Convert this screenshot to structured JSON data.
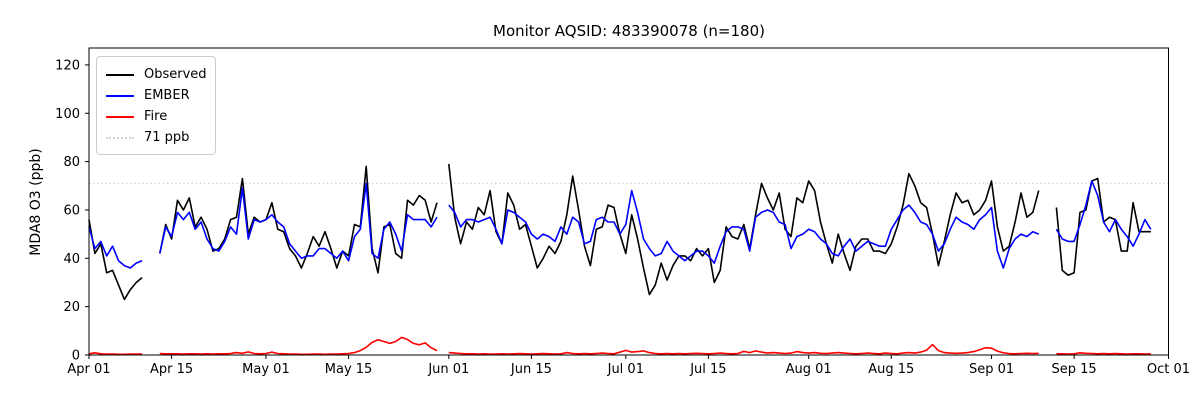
{
  "title": "Monitor AQSID: 483390078 (n=180)",
  "axes": {
    "ylabel": "MDA8 O3 (ppb)",
    "xlabel": "",
    "yticks": [
      0,
      20,
      40,
      60,
      80,
      100,
      120
    ],
    "ylim": [
      0,
      127
    ],
    "xtick_labels": [
      "Apr 01",
      "Apr 15",
      "May 01",
      "May 15",
      "Jun 01",
      "Jun 15",
      "Jul 01",
      "Jul 15",
      "Aug 01",
      "Aug 15",
      "Sep 01",
      "Sep 15",
      "Oct 01"
    ],
    "xtick_days": [
      0,
      14,
      30,
      44,
      61,
      75,
      91,
      105,
      122,
      136,
      153,
      167,
      183
    ],
    "grid": false
  },
  "colors": {
    "observed": "#000000",
    "ember": "#0000ff",
    "fire": "#ff0000",
    "threshold": "#d3d3d3",
    "spine": "#000000",
    "background": "#ffffff"
  },
  "legend": {
    "position": "upper left",
    "items": [
      {
        "label": "Observed",
        "color": "#000000",
        "dotted": false
      },
      {
        "label": "EMBER",
        "color": "#0000ff",
        "dotted": false
      },
      {
        "label": "Fire",
        "color": "#ff0000",
        "dotted": false
      },
      {
        "label": "71 ppb",
        "color": "#d3d3d3",
        "dotted": true
      }
    ]
  },
  "chart_data": {
    "type": "line",
    "title": "Monitor AQSID: 483390078 (n=180)",
    "xlabel": "",
    "ylabel": "MDA8 O3 (ppb)",
    "x_unit": "day index from Apr 01 (daily values, Apr 01 - Oct 01)",
    "n_days": 183,
    "ylim": [
      0,
      127
    ],
    "yticks": [
      0,
      20,
      40,
      60,
      80,
      100,
      120
    ],
    "xtick_days": [
      0,
      14,
      30,
      44,
      61,
      75,
      91,
      105,
      122,
      136,
      153,
      167,
      183
    ],
    "xtick_labels": [
      "Apr 01",
      "Apr 15",
      "May 01",
      "May 15",
      "Jun 01",
      "Jun 15",
      "Jul 01",
      "Jul 15",
      "Aug 01",
      "Aug 15",
      "Sep 01",
      "Sep 15",
      "Oct 01"
    ],
    "threshold_line": {
      "value": 71,
      "label": "71 ppb",
      "color": "#d3d3d3",
      "style": "dotted"
    },
    "legend_position": "upper left",
    "grid": false,
    "note": "null = missing day (data gaps near Apr 11-12, May 31, Sep 10-11, and after Sep 28)",
    "series": [
      {
        "name": "Observed",
        "color": "#000000",
        "values": [
          56,
          42,
          46,
          34,
          35,
          29,
          23,
          27,
          30,
          32,
          null,
          null,
          42,
          54,
          48,
          64,
          60,
          65,
          53,
          57,
          52,
          43,
          44,
          48,
          56,
          57,
          73,
          50,
          57,
          55,
          56,
          63,
          52,
          51,
          44,
          41,
          36,
          42,
          49,
          45,
          51,
          44,
          36,
          43,
          41,
          54,
          53,
          78,
          44,
          34,
          53,
          54,
          42,
          40,
          64,
          62,
          66,
          64,
          55,
          63,
          null,
          79,
          57,
          46,
          55,
          52,
          61,
          58,
          68,
          51,
          46,
          67,
          62,
          52,
          54,
          45,
          36,
          40,
          45,
          42,
          47,
          58,
          74,
          60,
          45,
          37,
          52,
          53,
          62,
          61,
          50,
          42,
          58,
          48,
          36,
          25,
          29,
          38,
          31,
          37,
          41,
          41,
          39,
          44,
          41,
          44,
          30,
          35,
          53,
          49,
          48,
          54,
          44,
          58,
          71,
          65,
          60,
          67,
          52,
          49,
          65,
          63,
          72,
          68,
          55,
          46,
          38,
          50,
          42,
          35,
          45,
          48,
          48,
          43,
          43,
          42,
          46,
          53,
          62,
          75,
          70,
          63,
          61,
          50,
          37,
          47,
          58,
          67,
          63,
          64,
          58,
          60,
          64,
          72,
          53,
          43,
          45,
          55,
          67,
          57,
          59,
          68,
          null,
          null,
          61,
          35,
          33,
          34,
          59,
          60,
          72,
          73,
          55,
          57,
          56,
          43,
          43,
          63,
          51,
          51,
          51,
          null,
          null
        ]
      },
      {
        "name": "EMBER",
        "color": "#0000ff",
        "values": [
          53,
          44,
          47,
          41,
          45,
          39,
          37,
          36,
          38,
          39,
          null,
          null,
          42,
          53,
          49,
          59,
          56,
          59,
          52,
          55,
          48,
          44,
          43,
          47,
          53,
          50,
          69,
          48,
          56,
          55,
          56,
          58,
          55,
          53,
          46,
          43,
          40,
          41,
          41,
          44,
          44,
          42,
          40,
          43,
          39,
          49,
          52,
          71,
          42,
          40,
          52,
          55,
          50,
          43,
          58,
          56,
          56,
          56,
          53,
          57,
          null,
          62,
          59,
          53,
          56,
          56,
          55,
          56,
          57,
          52,
          46,
          60,
          59,
          57,
          55,
          50,
          48,
          50,
          49,
          47,
          53,
          50,
          57,
          55,
          46,
          47,
          56,
          57,
          55,
          55,
          50,
          54,
          68,
          59,
          48,
          44,
          41,
          42,
          47,
          43,
          41,
          39,
          41,
          43,
          43,
          41,
          38,
          45,
          51,
          53,
          53,
          52,
          43,
          57,
          59,
          60,
          59,
          55,
          54,
          44,
          49,
          50,
          52,
          51,
          48,
          46,
          42,
          41,
          45,
          48,
          43,
          45,
          47,
          46,
          45,
          45,
          52,
          56,
          60,
          62,
          59,
          55,
          54,
          50,
          43,
          46,
          52,
          57,
          55,
          54,
          52,
          56,
          58,
          61,
          43,
          36,
          44,
          48,
          50,
          49,
          51,
          50,
          null,
          null,
          52,
          48,
          47,
          47,
          54,
          62,
          72,
          66,
          55,
          51,
          56,
          52,
          49,
          45,
          50,
          56,
          52,
          null,
          null
        ]
      },
      {
        "name": "Fire",
        "color": "#ff0000",
        "values": [
          0.5,
          0.9,
          0.5,
          0.4,
          0.4,
          0.3,
          0.3,
          0.4,
          0.4,
          0.4,
          null,
          null,
          0.6,
          0.5,
          0.5,
          0.5,
          0.4,
          0.5,
          0.5,
          0.4,
          0.5,
          0.4,
          0.5,
          0.5,
          0.6,
          1.0,
          0.7,
          1.3,
          0.6,
          0.5,
          0.6,
          1.2,
          0.6,
          0.5,
          0.4,
          0.4,
          0.3,
          0.3,
          0.4,
          0.4,
          0.3,
          0.4,
          0.4,
          0.5,
          0.6,
          1.0,
          1.8,
          3.2,
          5.2,
          6.3,
          5.6,
          4.8,
          5.6,
          7.3,
          6.4,
          4.8,
          4.2,
          5.0,
          3.0,
          1.8,
          null,
          1.0,
          0.8,
          0.6,
          0.5,
          0.5,
          0.4,
          0.5,
          0.4,
          0.4,
          0.5,
          0.4,
          0.5,
          0.6,
          0.5,
          0.4,
          0.5,
          0.6,
          0.5,
          0.4,
          0.5,
          1.0,
          0.6,
          0.5,
          0.6,
          0.5,
          0.6,
          0.8,
          0.6,
          0.5,
          1.2,
          1.9,
          1.2,
          1.4,
          1.7,
          1.0,
          0.6,
          0.5,
          0.6,
          0.5,
          0.6,
          0.5,
          0.6,
          0.7,
          0.6,
          0.5,
          0.6,
          0.8,
          0.6,
          0.5,
          0.6,
          1.5,
          1.0,
          1.7,
          1.2,
          0.8,
          1.0,
          0.8,
          0.6,
          0.8,
          1.4,
          1.0,
          0.8,
          1.0,
          0.7,
          0.6,
          0.8,
          1.0,
          0.8,
          0.6,
          0.5,
          0.6,
          0.8,
          0.6,
          0.5,
          0.8,
          0.6,
          0.5,
          0.8,
          1.0,
          0.8,
          1.2,
          2.0,
          4.3,
          1.8,
          1.0,
          0.8,
          0.7,
          0.8,
          1.0,
          1.4,
          2.2,
          3.0,
          2.8,
          1.6,
          0.9,
          0.6,
          0.5,
          0.6,
          0.7,
          0.6,
          0.7,
          null,
          null,
          0.5,
          0.5,
          0.4,
          0.5,
          0.9,
          0.7,
          0.6,
          0.5,
          0.6,
          0.5,
          0.6,
          0.5,
          0.4,
          0.5,
          0.5,
          0.4,
          0.5,
          null,
          null
        ]
      }
    ]
  }
}
